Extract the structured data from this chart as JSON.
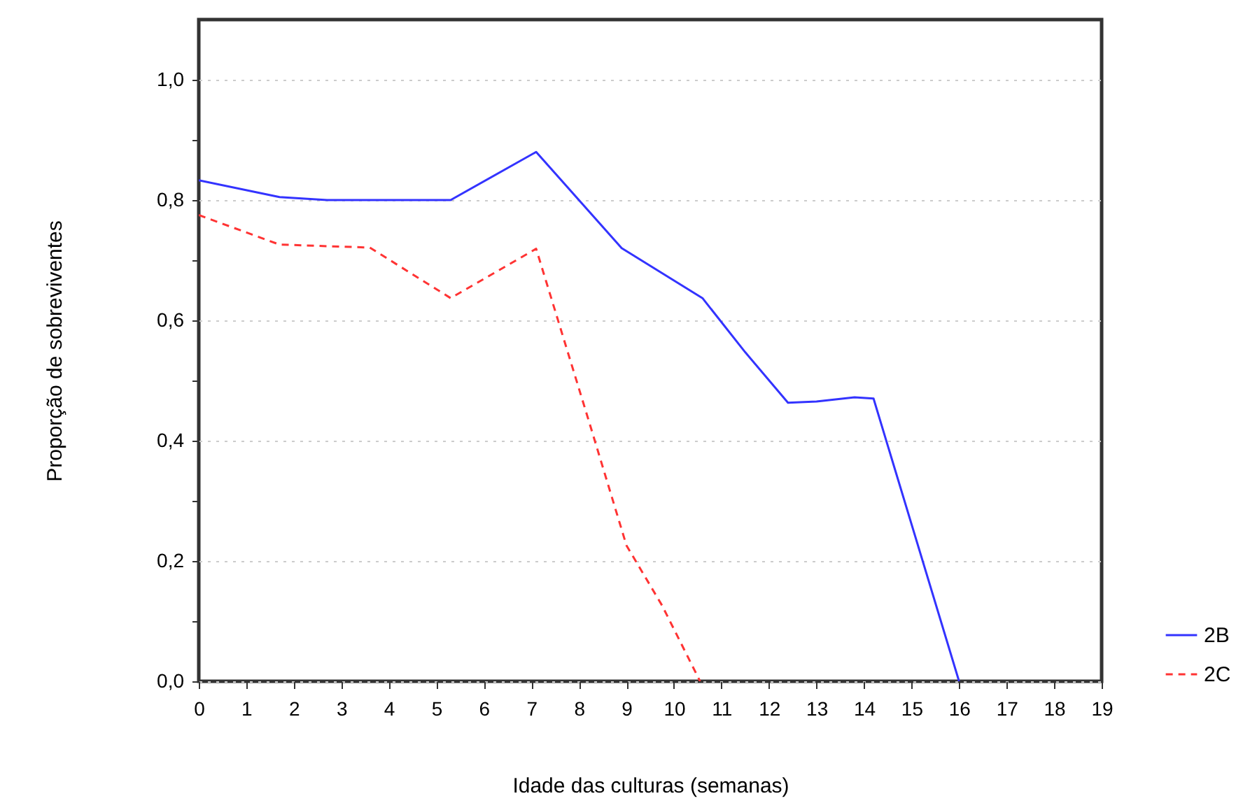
{
  "chart_data": {
    "type": "line",
    "xlabel": "Idade das culturas (semanas)",
    "ylabel": "Proporção de sobreviventes",
    "xlim": [
      0,
      19
    ],
    "xticks": [
      0,
      1,
      2,
      3,
      4,
      5,
      6,
      7,
      8,
      9,
      10,
      11,
      12,
      13,
      14,
      15,
      16,
      17,
      18,
      19
    ],
    "ylim": [
      0,
      1.1
    ],
    "yticks": [
      {
        "value": 0,
        "label": "0,0"
      },
      {
        "value": 0.1,
        "label": null
      },
      {
        "value": 0.2,
        "label": "0,2"
      },
      {
        "value": 0.3,
        "label": null
      },
      {
        "value": 0.4,
        "label": "0,4"
      },
      {
        "value": 0.5,
        "label": null
      },
      {
        "value": 0.6,
        "label": "0,6"
      },
      {
        "value": 0.7,
        "label": null
      },
      {
        "value": 0.8,
        "label": "0,8"
      },
      {
        "value": 0.9,
        "label": null
      },
      {
        "value": 1.0,
        "label": "1,0"
      }
    ],
    "grid": "y",
    "legend": "bottom right",
    "series": [
      {
        "name": "2B",
        "color": "#3333ff",
        "line_style": "solid",
        "x": [
          0,
          1.7,
          2.7,
          5.3,
          7.1,
          8.0,
          8.9,
          10.6,
          11.5,
          12.4,
          13.0,
          13.8,
          14.2,
          16.0
        ],
        "values": [
          0.833,
          0.805,
          0.8,
          0.8,
          0.88,
          0.8,
          0.72,
          0.637,
          0.547,
          0.463,
          0.465,
          0.472,
          0.47,
          0
        ]
      },
      {
        "name": "2C",
        "color": "#ff3333",
        "line_style": "dashed",
        "x": [
          0,
          1.7,
          3.6,
          5.3,
          7.1,
          8.2,
          9.0,
          9.75,
          10.55
        ],
        "values": [
          0.775,
          0.726,
          0.721,
          0.637,
          0.719,
          0.435,
          0.226,
          0.126,
          0
        ]
      }
    ]
  }
}
